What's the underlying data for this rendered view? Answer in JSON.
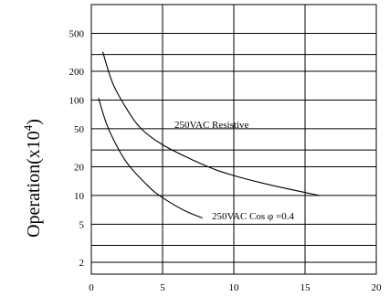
{
  "chart_data": {
    "type": "line",
    "title": "",
    "xlabel": "",
    "ylabel": "Operation(x10",
    "ylabel_exponent": "4",
    "ylabel_close": ")",
    "x_ticks": [
      "0",
      "5",
      "10",
      "15",
      "20"
    ],
    "x_tick_values": [
      0,
      5,
      10,
      15,
      20
    ],
    "y_ticks": [
      "500",
      "200",
      "100",
      "50",
      "20",
      "10",
      "5",
      "2"
    ],
    "y_tick_values": [
      500,
      200,
      100,
      50,
      20,
      10,
      5,
      2
    ],
    "xlim": [
      0,
      20
    ],
    "ylim": [
      1.5,
      1000
    ],
    "y_scale": "log",
    "grid": true,
    "series": [
      {
        "name": "250VAC Resistive",
        "x": [
          0.8,
          1.5,
          2.5,
          3.5,
          5,
          7,
          9,
          12,
          16
        ],
        "y": [
          320,
          150,
          80,
          50,
          34,
          24,
          18,
          13.5,
          10
        ]
      },
      {
        "name": "250VAC Cos φ =0.4",
        "x": [
          0.5,
          1,
          1.5,
          2.5,
          4,
          5,
          6.5,
          7.8
        ],
        "y": [
          105,
          60,
          40,
          22,
          12.5,
          9.5,
          7,
          5.8
        ]
      }
    ]
  }
}
